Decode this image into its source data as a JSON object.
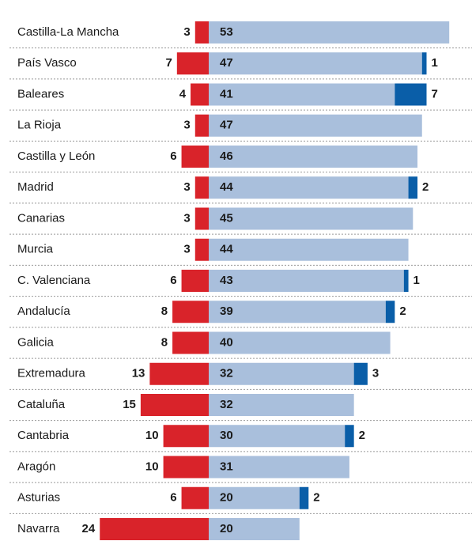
{
  "chart_data": {
    "type": "bar",
    "stacked": true,
    "categories": [
      "Castilla-La Mancha",
      "País Vasco",
      "Baleares",
      "La Rioja",
      "Castilla y León",
      "Madrid",
      "Canarias",
      "Murcia",
      "C. Valenciana",
      "Andalucía",
      "Galicia",
      "Extremadura",
      "Cataluña",
      "Cantabria",
      "Aragón",
      "Asturias",
      "Navarra"
    ],
    "series": [
      {
        "color": "#d9232a",
        "direction": "left",
        "values": [
          3,
          7,
          4,
          3,
          6,
          3,
          3,
          3,
          6,
          8,
          8,
          13,
          15,
          10,
          10,
          6,
          24
        ]
      },
      {
        "color": "#a9bfdc",
        "direction": "right",
        "values": [
          53,
          47,
          41,
          47,
          46,
          44,
          45,
          44,
          43,
          39,
          40,
          32,
          32,
          30,
          31,
          20,
          20
        ]
      },
      {
        "color": "#0a5ea8",
        "direction": "right",
        "values": [
          null,
          1,
          7,
          null,
          null,
          2,
          null,
          null,
          1,
          2,
          null,
          3,
          null,
          2,
          null,
          2,
          null
        ]
      }
    ]
  }
}
